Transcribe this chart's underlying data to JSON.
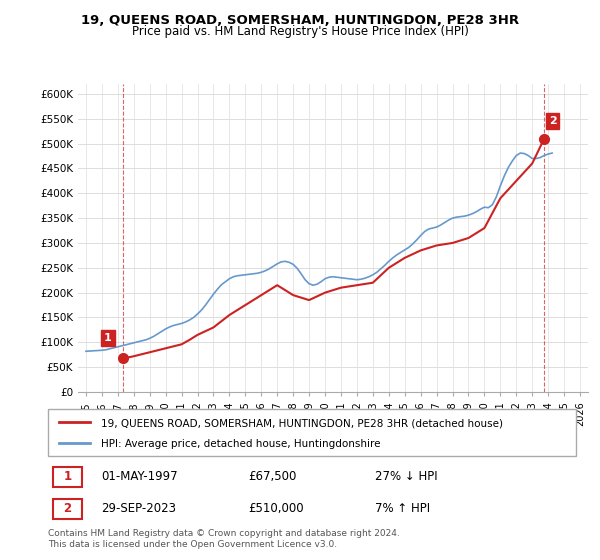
{
  "title": "19, QUEENS ROAD, SOMERSHAM, HUNTINGDON, PE28 3HR",
  "subtitle": "Price paid vs. HM Land Registry's House Price Index (HPI)",
  "footer": "Contains HM Land Registry data © Crown copyright and database right 2024.\nThis data is licensed under the Open Government Licence v3.0.",
  "legend_line1": "19, QUEENS ROAD, SOMERSHAM, HUNTINGDON, PE28 3HR (detached house)",
  "legend_line2": "HPI: Average price, detached house, Huntingdonshire",
  "transaction1_label": "1",
  "transaction1_date": "01-MAY-1997",
  "transaction1_price": "£67,500",
  "transaction1_hpi": "27% ↓ HPI",
  "transaction2_label": "2",
  "transaction2_date": "29-SEP-2023",
  "transaction2_price": "£510,000",
  "transaction2_hpi": "7% ↑ HPI",
  "hpi_color": "#6699cc",
  "price_color": "#cc2222",
  "marker_color": "#cc2222",
  "bg_color": "#ffffff",
  "grid_color": "#dddddd",
  "ylim": [
    0,
    620000
  ],
  "yticks": [
    0,
    50000,
    100000,
    150000,
    200000,
    250000,
    300000,
    350000,
    400000,
    450000,
    500000,
    550000,
    600000
  ],
  "hpi_x": [
    1995.0,
    1995.25,
    1995.5,
    1995.75,
    1996.0,
    1996.25,
    1996.5,
    1996.75,
    1997.0,
    1997.25,
    1997.5,
    1997.75,
    1998.0,
    1998.25,
    1998.5,
    1998.75,
    1999.0,
    1999.25,
    1999.5,
    1999.75,
    2000.0,
    2000.25,
    2000.5,
    2000.75,
    2001.0,
    2001.25,
    2001.5,
    2001.75,
    2002.0,
    2002.25,
    2002.5,
    2002.75,
    2003.0,
    2003.25,
    2003.5,
    2003.75,
    2004.0,
    2004.25,
    2004.5,
    2004.75,
    2005.0,
    2005.25,
    2005.5,
    2005.75,
    2006.0,
    2006.25,
    2006.5,
    2006.75,
    2007.0,
    2007.25,
    2007.5,
    2007.75,
    2008.0,
    2008.25,
    2008.5,
    2008.75,
    2009.0,
    2009.25,
    2009.5,
    2009.75,
    2010.0,
    2010.25,
    2010.5,
    2010.75,
    2011.0,
    2011.25,
    2011.5,
    2011.75,
    2012.0,
    2012.25,
    2012.5,
    2012.75,
    2013.0,
    2013.25,
    2013.5,
    2013.75,
    2014.0,
    2014.25,
    2014.5,
    2014.75,
    2015.0,
    2015.25,
    2015.5,
    2015.75,
    2016.0,
    2016.25,
    2016.5,
    2016.75,
    2017.0,
    2017.25,
    2017.5,
    2017.75,
    2018.0,
    2018.25,
    2018.5,
    2018.75,
    2019.0,
    2019.25,
    2019.5,
    2019.75,
    2020.0,
    2020.25,
    2020.5,
    2020.75,
    2021.0,
    2021.25,
    2021.5,
    2021.75,
    2022.0,
    2022.25,
    2022.5,
    2022.75,
    2023.0,
    2023.25,
    2023.5,
    2023.75,
    2024.0,
    2024.25
  ],
  "hpi_y": [
    82000,
    82500,
    83000,
    83500,
    84000,
    85000,
    87000,
    89000,
    91000,
    93000,
    95000,
    97000,
    99000,
    101000,
    103000,
    105000,
    108000,
    112000,
    117000,
    122000,
    127000,
    131000,
    134000,
    136000,
    138000,
    141000,
    145000,
    150000,
    157000,
    165000,
    175000,
    186000,
    197000,
    207000,
    216000,
    222000,
    228000,
    232000,
    234000,
    235000,
    236000,
    237000,
    238000,
    239000,
    241000,
    244000,
    248000,
    253000,
    258000,
    262000,
    263000,
    261000,
    257000,
    249000,
    238000,
    226000,
    218000,
    215000,
    217000,
    222000,
    228000,
    231000,
    232000,
    231000,
    230000,
    229000,
    228000,
    227000,
    226000,
    227000,
    229000,
    232000,
    236000,
    241000,
    248000,
    255000,
    263000,
    270000,
    276000,
    281000,
    286000,
    291000,
    298000,
    306000,
    315000,
    323000,
    328000,
    330000,
    332000,
    336000,
    341000,
    346000,
    350000,
    352000,
    353000,
    354000,
    356000,
    359000,
    363000,
    368000,
    372000,
    371000,
    377000,
    393000,
    415000,
    435000,
    452000,
    465000,
    476000,
    481000,
    480000,
    476000,
    470000,
    470000,
    472000,
    476000,
    479000,
    481000
  ],
  "price_x": [
    1997.33,
    1998.0,
    1999.0,
    2000.0,
    2001.0,
    2001.5,
    2002.0,
    2003.0,
    2004.0,
    2005.0,
    2006.0,
    2007.0,
    2007.5,
    2008.0,
    2009.0,
    2010.0,
    2011.0,
    2012.0,
    2013.0,
    2014.0,
    2015.0,
    2016.0,
    2017.0,
    2018.0,
    2019.0,
    2020.0,
    2021.0,
    2022.0,
    2023.0,
    2023.75
  ],
  "price_y": [
    67500,
    72000,
    80000,
    88000,
    96000,
    105000,
    115000,
    130000,
    155000,
    175000,
    195000,
    215000,
    205000,
    195000,
    185000,
    200000,
    210000,
    215000,
    220000,
    250000,
    270000,
    285000,
    295000,
    300000,
    310000,
    330000,
    390000,
    425000,
    460000,
    510000
  ],
  "transaction1_x": 1997.33,
  "transaction1_y": 67500,
  "transaction2_x": 2023.75,
  "transaction2_y": 510000,
  "vline1_x": 1997.33,
  "vline2_x": 2023.75,
  "xmin": 1994.5,
  "xmax": 2026.5
}
